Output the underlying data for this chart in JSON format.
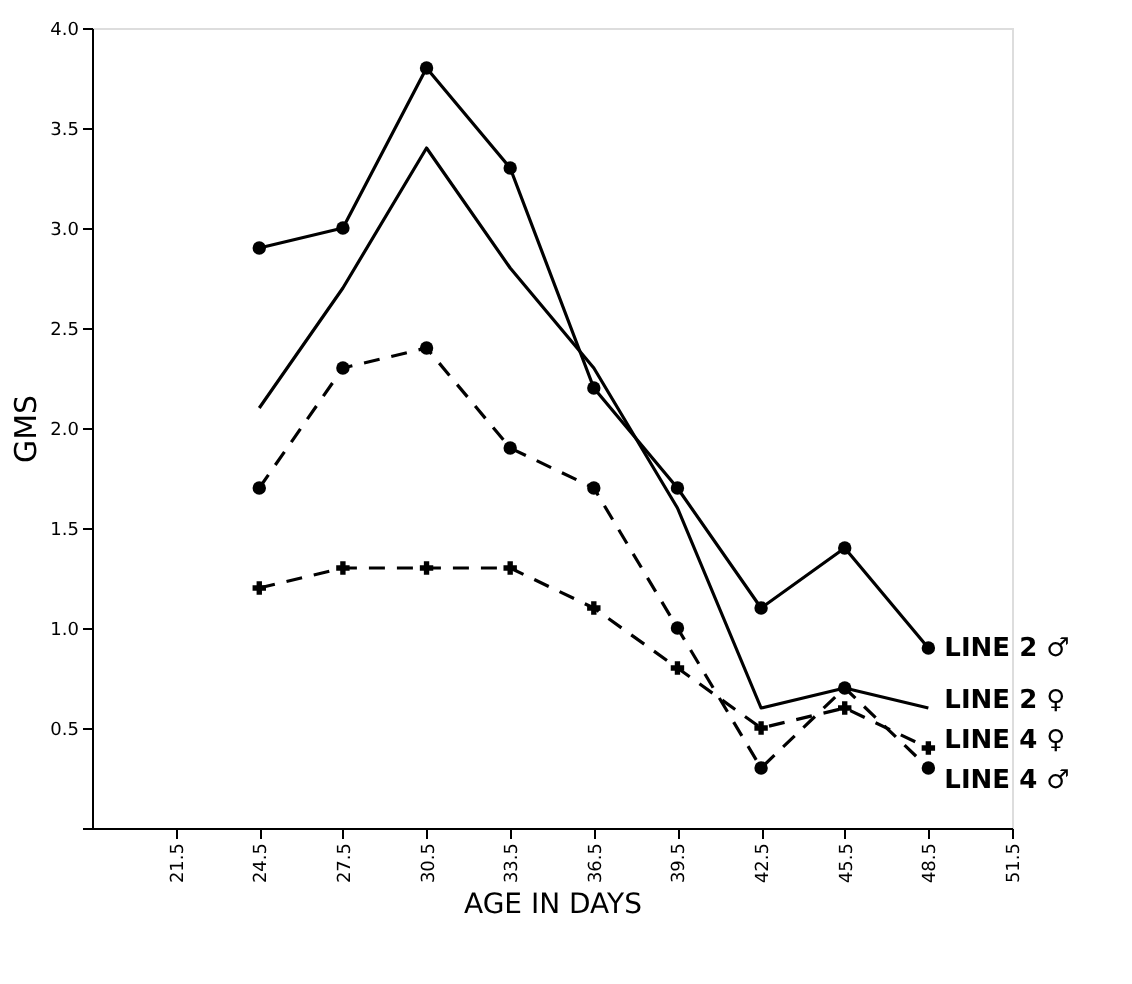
{
  "chart_data": {
    "type": "line",
    "xlabel": "AGE IN DAYS",
    "ylabel": "GMS",
    "x": [
      24.5,
      27.5,
      30.5,
      33.5,
      36.5,
      39.5,
      42.5,
      45.5,
      48.5
    ],
    "series": [
      {
        "name": "LINE 2 ♂",
        "color": "#000000",
        "marker": "circle",
        "line_style": "solid",
        "values": [
          2.9,
          3.0,
          3.8,
          3.3,
          2.2,
          1.7,
          1.1,
          1.4,
          0.9
        ]
      },
      {
        "name": "LINE 2 ♀",
        "color": "#000000",
        "marker": "none",
        "line_style": "solid",
        "values": [
          2.1,
          2.7,
          3.4,
          2.8,
          2.3,
          1.6,
          0.6,
          0.7,
          0.6
        ]
      },
      {
        "name": "LINE 4 ♀",
        "color": "#000000",
        "marker": "cross",
        "line_style": "dashed",
        "values": [
          1.2,
          1.3,
          1.3,
          1.3,
          1.1,
          0.8,
          0.5,
          0.6,
          0.4
        ]
      },
      {
        "name": "LINE 4 ♂",
        "color": "#000000",
        "marker": "circle",
        "line_style": "dashed",
        "values": [
          1.7,
          2.3,
          2.4,
          1.9,
          1.7,
          1.0,
          0.3,
          0.7,
          0.3
        ]
      }
    ],
    "xlim": [
      18.5,
      51.5
    ],
    "xticks": [
      21.5,
      24.5,
      27.5,
      30.5,
      33.5,
      36.5,
      39.5,
      42.5,
      45.5,
      48.5,
      51.5
    ],
    "ylim": [
      0,
      4.0
    ],
    "yticks": [
      {
        "value": 0,
        "label": null
      },
      {
        "value": 0.5,
        "label": "0.5"
      },
      {
        "value": 1,
        "label": "1.0"
      },
      {
        "value": 1.5,
        "label": "1.5"
      },
      {
        "value": 2,
        "label": "2.0"
      },
      {
        "value": 2.5,
        "label": "2.5"
      },
      {
        "value": 3,
        "label": "3.0"
      },
      {
        "value": 3.5,
        "label": "3.5"
      },
      {
        "value": 4,
        "label": "4.0"
      }
    ],
    "grid": false,
    "legend": false
  }
}
